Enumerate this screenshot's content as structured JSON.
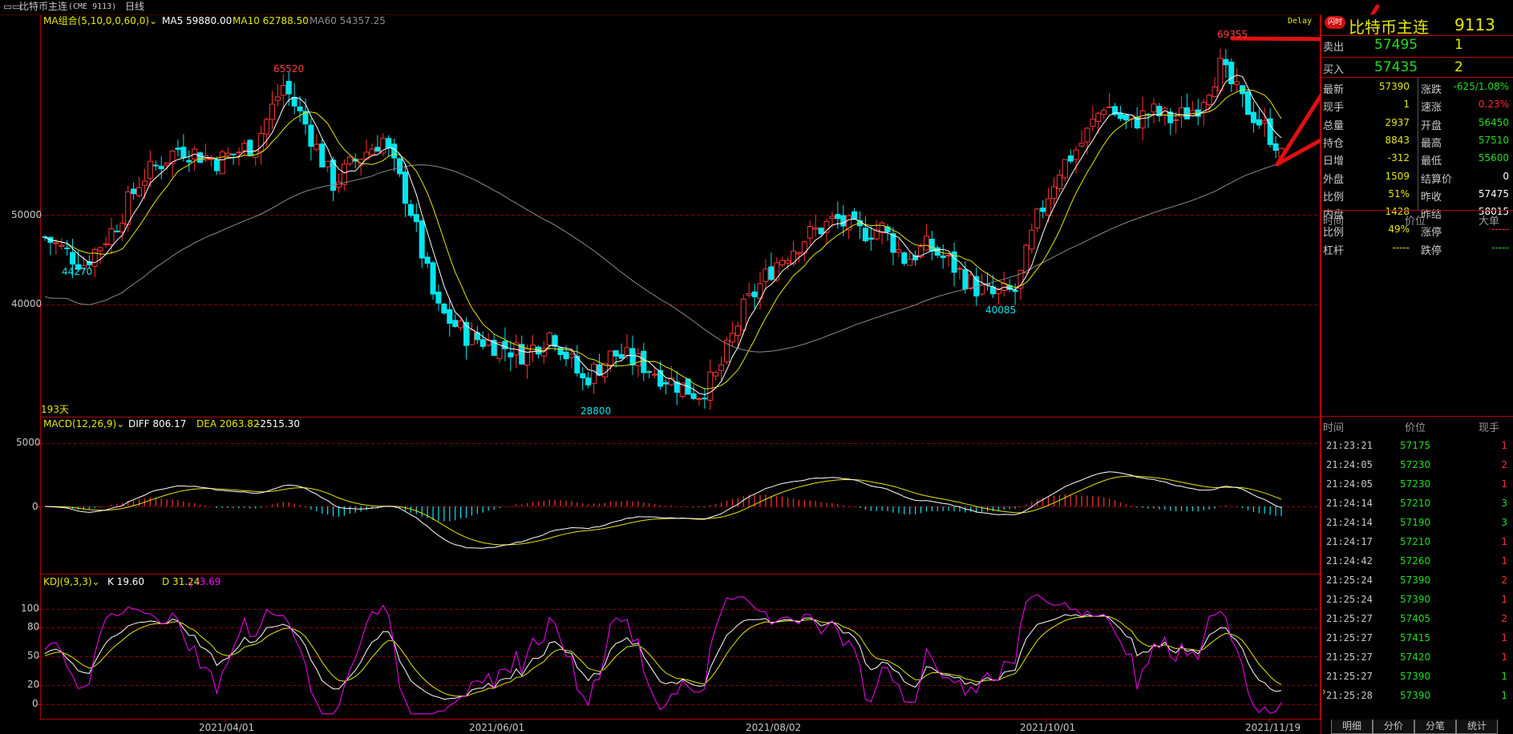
{
  "topbar": {
    "instrument": "比特币主连",
    "code": "(CME 9113)",
    "period": "日线",
    "delay": "Delay"
  },
  "price_pane": {
    "ma_group": "MA组合(5,10,0,0,60,0)",
    "ma5": "MA5 59880.00",
    "ma10": "MA10 62788.50",
    "ma60": "MA60 54357.25",
    "y_ticks": [
      "50000",
      "40000"
    ],
    "annotations": {
      "high1": "65520",
      "low1": "44270",
      "low2": "28800",
      "low3": "40085",
      "high2": "69355"
    },
    "days": "193天"
  },
  "macd_pane": {
    "title": "MACD(12,26,9)",
    "diff": "DIFF 806.17",
    "dea": "DEA 2063.82",
    "macd": "-2515.30",
    "y_ticks": [
      "5000",
      "0"
    ]
  },
  "kdj_pane": {
    "title": "KDJ(9,3,3)",
    "k": "K 19.60",
    "d": "D 31.24",
    "j": "J -3.69",
    "y_ticks": [
      "100",
      "80",
      "50",
      "20",
      "0"
    ]
  },
  "x_axis": [
    "2021/04/01",
    "2021/06/01",
    "2021/08/02",
    "2021/10/01",
    "2021/11/19"
  ],
  "quote": {
    "badge": "闪时",
    "name": "比特币主连",
    "code": "9113",
    "sell_label": "卖出",
    "sell_price": "57495",
    "sell_qty": "1",
    "buy_label": "买入",
    "buy_price": "57435",
    "buy_qty": "2",
    "rows": [
      {
        "l1": "最新",
        "v1": "57390",
        "l2": "涨跌",
        "v2": "-625/1.08%"
      },
      {
        "l1": "现手",
        "v1": "1",
        "l2": "速涨",
        "v2": "0.23%"
      },
      {
        "l1": "总量",
        "v1": "2937",
        "l2": "开盘",
        "v2": "56450"
      },
      {
        "l1": "持仓",
        "v1": "8843",
        "l2": "最高",
        "v2": "57510"
      },
      {
        "l1": "日增",
        "v1": "-312",
        "l2": "最低",
        "v2": "55600"
      },
      {
        "l1": "外盘",
        "v1": "1509",
        "l2": "结算价",
        "v2": "0"
      },
      {
        "l1": "比例",
        "v1": "51%",
        "l2": "昨收",
        "v2": "57475"
      },
      {
        "l1": "内盘",
        "v1": "1428",
        "l2": "昨结",
        "v2": "58015"
      },
      {
        "l1": "比例",
        "v1": "49%",
        "l2": "涨停",
        "v2": "-----"
      },
      {
        "l1": "杠杆",
        "v1": "-----",
        "l2": "跌停",
        "v2": "-----"
      }
    ],
    "big_header": {
      "time": "时间",
      "price": "价位",
      "big": "大单"
    },
    "tick_header": {
      "time": "时间",
      "price": "价位",
      "qty": "现手"
    },
    "ticks": [
      {
        "time": "21:23:21",
        "price": "57175",
        "qty": "1",
        "qc": "#ff3030"
      },
      {
        "time": "21:24:05",
        "price": "57230",
        "qty": "2",
        "qc": "#ff3030"
      },
      {
        "time": "21:24:05",
        "price": "57230",
        "qty": "1",
        "qc": "#ff3030"
      },
      {
        "time": "21:24:14",
        "price": "57210",
        "qty": "3",
        "qc": "#22dd22"
      },
      {
        "time": "21:24:14",
        "price": "57190",
        "qty": "3",
        "qc": "#22dd22"
      },
      {
        "time": "21:24:17",
        "price": "57210",
        "qty": "1",
        "qc": "#ff3030"
      },
      {
        "time": "21:24:42",
        "price": "57260",
        "qty": "1",
        "qc": "#ff3030"
      },
      {
        "time": "21:25:24",
        "price": "57390",
        "qty": "2",
        "qc": "#ff3030"
      },
      {
        "time": "21:25:24",
        "price": "57390",
        "qty": "1",
        "qc": "#ff3030"
      },
      {
        "time": "21:25:27",
        "price": "57405",
        "qty": "2",
        "qc": "#ff3030"
      },
      {
        "time": "21:25:27",
        "price": "57415",
        "qty": "1",
        "qc": "#ff3030"
      },
      {
        "time": "21:25:27",
        "price": "57420",
        "qty": "1",
        "qc": "#ff3030"
      },
      {
        "time": "21:25:27",
        "price": "57390",
        "qty": "1",
        "qc": "#22dd22"
      },
      {
        "time": "21:25:28",
        "price": "57390",
        "qty": "1",
        "qc": "#22dd22"
      }
    ]
  },
  "tabs": [
    "明细",
    "分价",
    "分笔",
    "统计"
  ],
  "colors": {
    "up": "#ff3333",
    "down": "#00e5ee",
    "ma5": "#ffffff",
    "ma10": "#e6e600",
    "ma60": "#8a8a8a",
    "grid": "#8b0000",
    "frame": "#b00000",
    "jline": "#ff00ff"
  }
}
